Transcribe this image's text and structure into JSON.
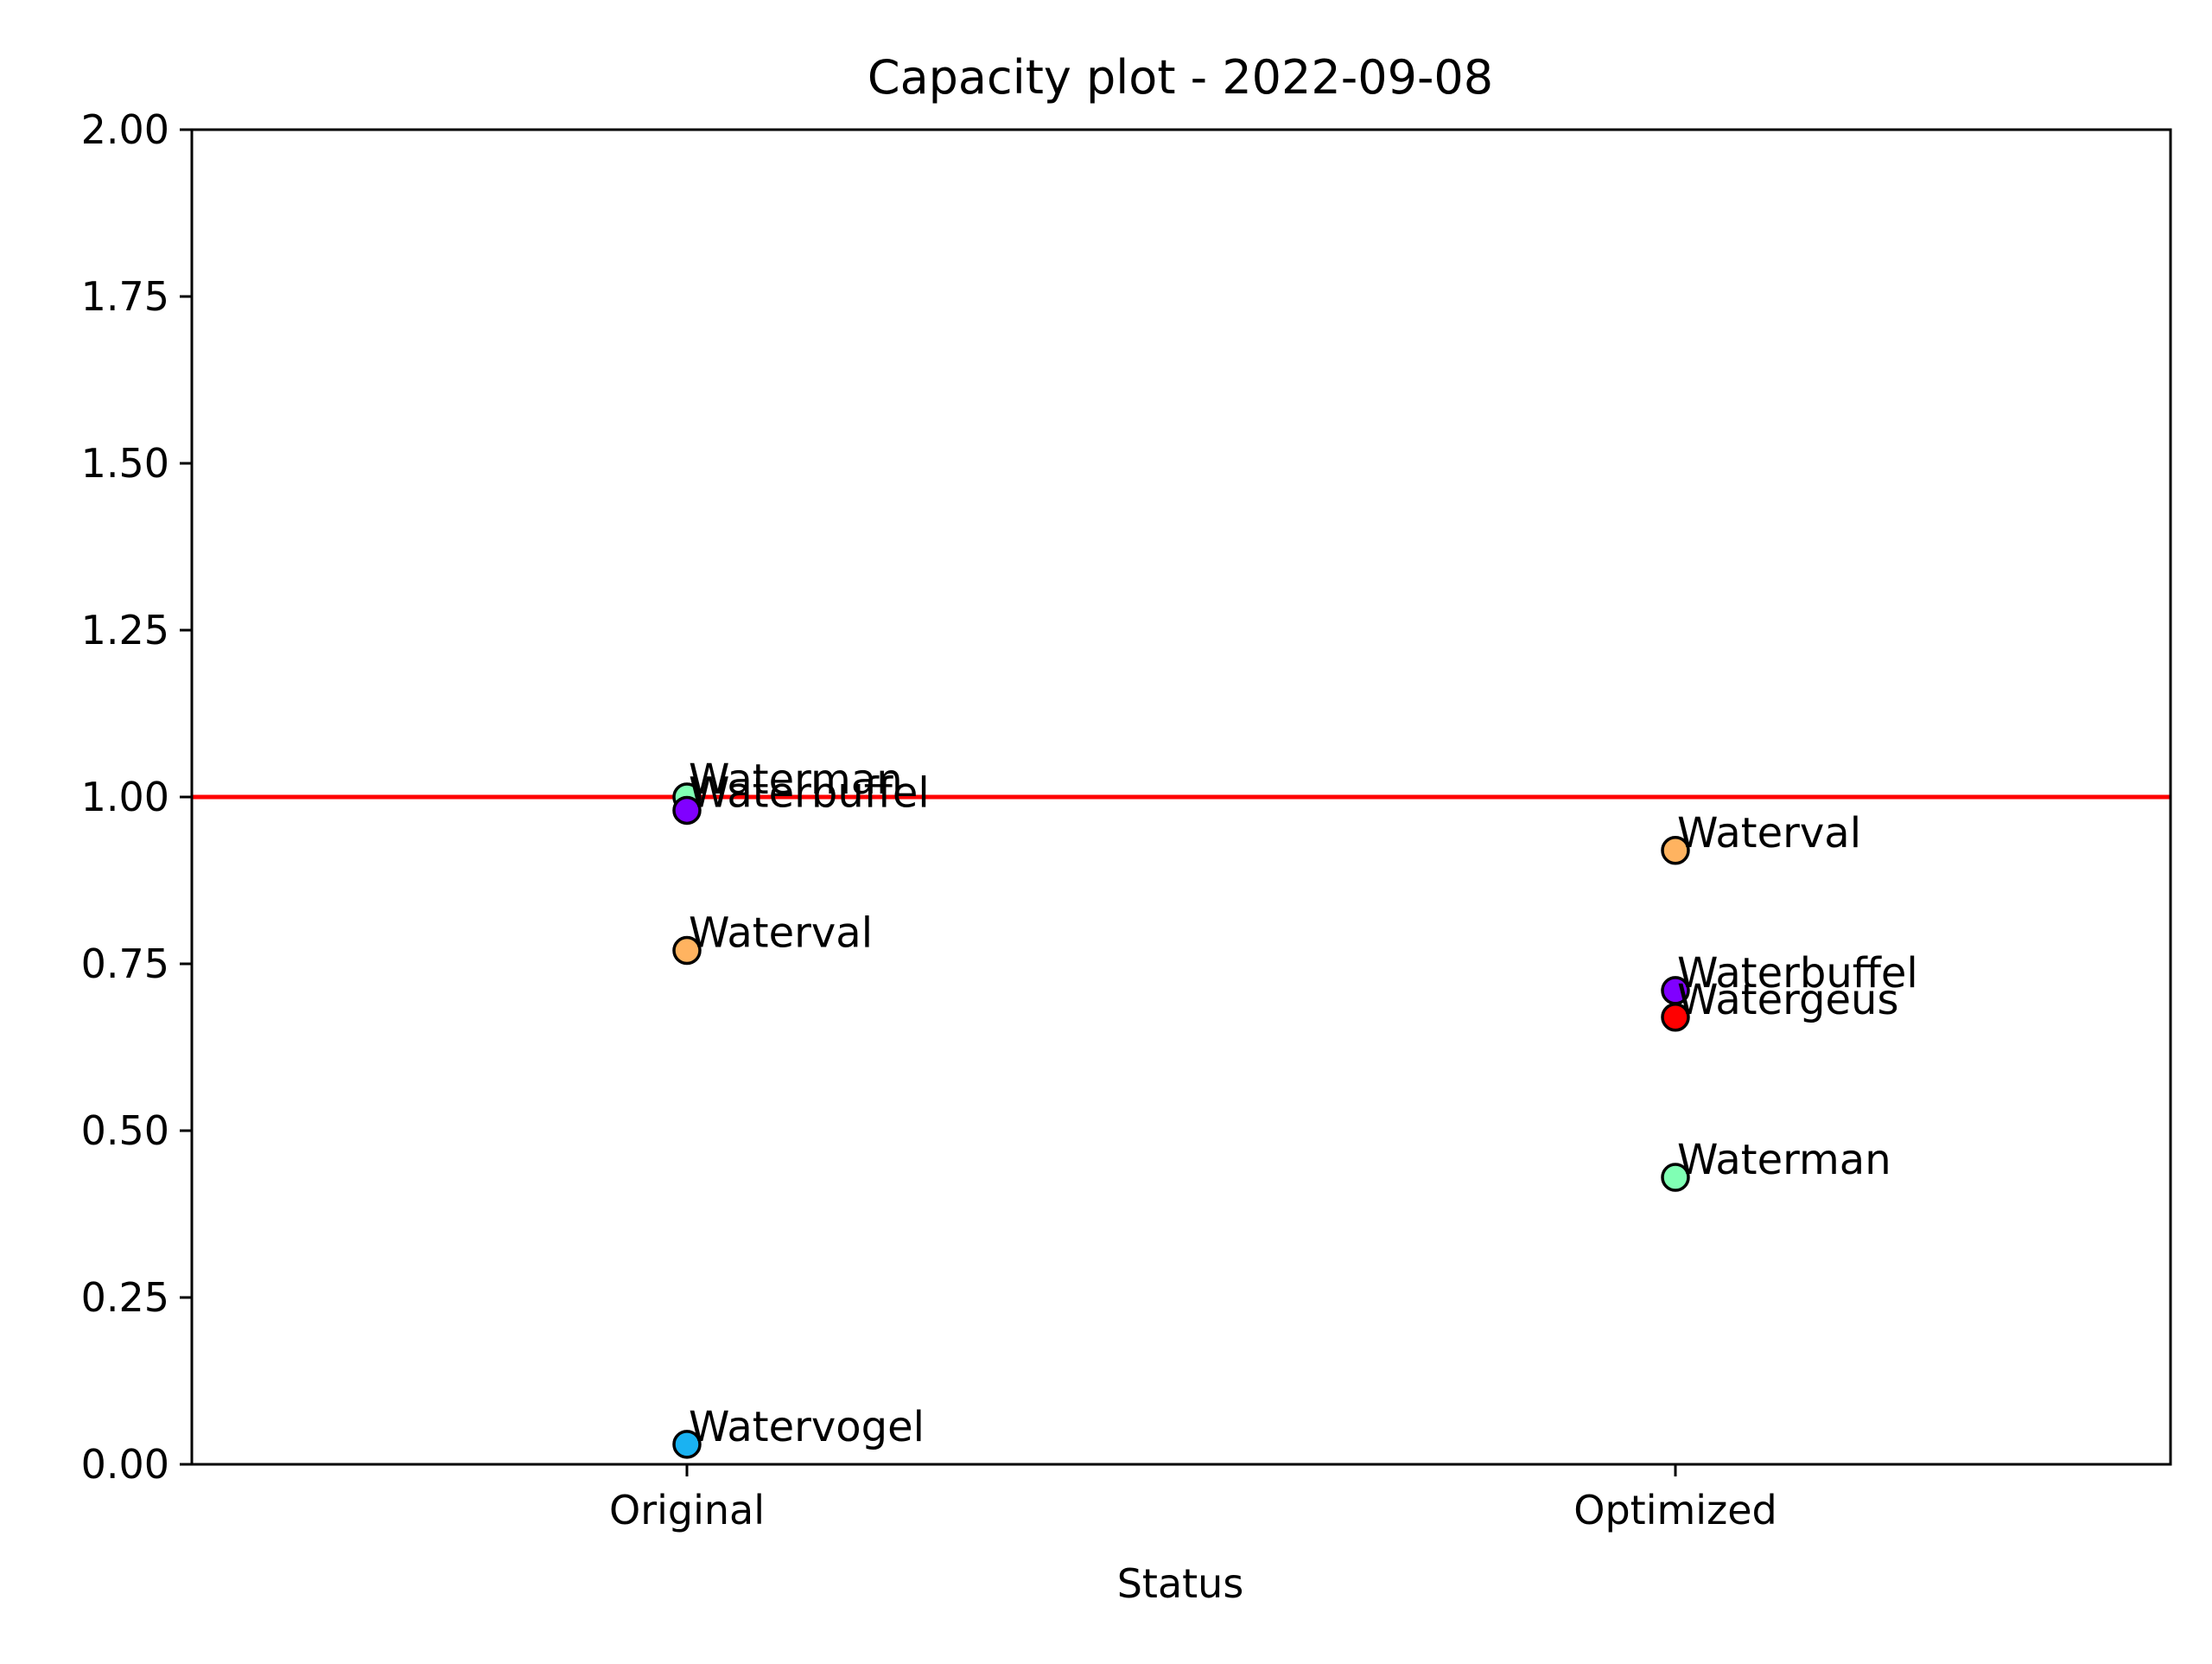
{
  "chart_data": {
    "type": "scatter",
    "title": "Capacity plot - 2022-09-08",
    "xlabel": "Status",
    "ylabel": "",
    "categories": [
      "Original",
      "Optimized"
    ],
    "ylim": [
      0,
      2
    ],
    "yticks": [
      "0.00",
      "0.25",
      "0.50",
      "0.75",
      "1.00",
      "1.25",
      "1.50",
      "1.75",
      "2.00"
    ],
    "reference_line": {
      "y": 1.0,
      "color": "#ff0000"
    },
    "grid": false,
    "legend": "none",
    "points": [
      {
        "label": "Waterman",
        "category": "Original",
        "y": 1.0,
        "color": "#80ffb4"
      },
      {
        "label": "Waterbuffel",
        "category": "Original",
        "y": 0.98,
        "color": "#8000ff"
      },
      {
        "label": "Waterval",
        "category": "Original",
        "y": 0.77,
        "color": "#ffb360"
      },
      {
        "label": "Watervogel",
        "category": "Original",
        "y": 0.03,
        "color": "#1ab2f2"
      },
      {
        "label": "Waterval",
        "category": "Optimized",
        "y": 0.92,
        "color": "#ffb360"
      },
      {
        "label": "Waterbuffel",
        "category": "Optimized",
        "y": 0.71,
        "color": "#8000ff"
      },
      {
        "label": "Watergeus",
        "category": "Optimized",
        "y": 0.67,
        "color": "#ff0000"
      },
      {
        "label": "Waterman",
        "category": "Optimized",
        "y": 0.43,
        "color": "#80ffb4"
      }
    ]
  }
}
